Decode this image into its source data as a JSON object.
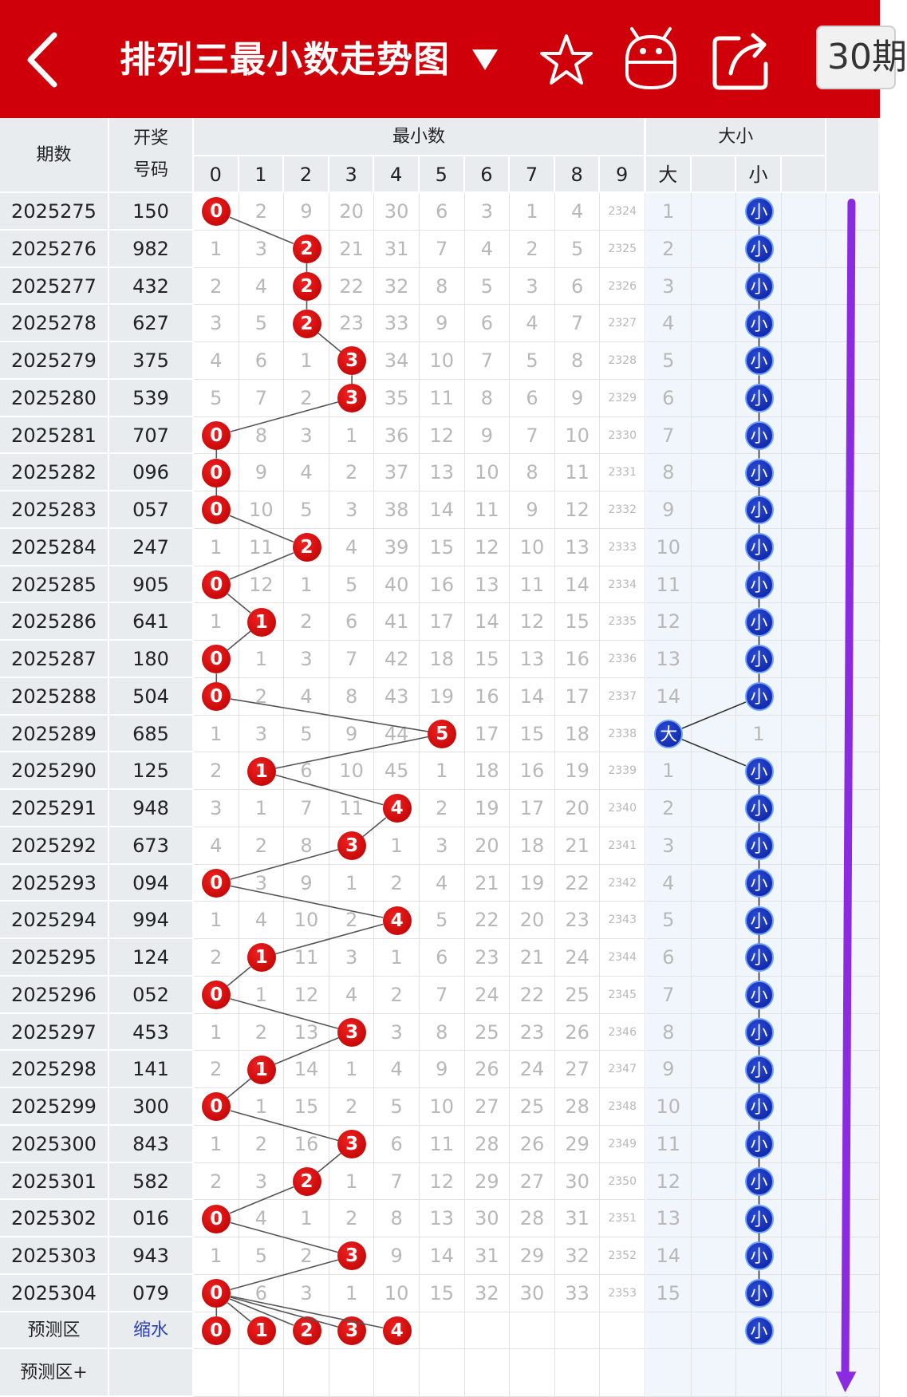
{
  "header": {
    "title": "排列三最小数走势图",
    "period_option": "30期",
    "colors": {
      "bar": "#d0000b",
      "text": "#ffffff"
    },
    "icons": [
      "back-arrow-icon",
      "dropdown-triangle-icon",
      "star-icon",
      "robot-icon",
      "share-icon"
    ]
  },
  "table": {
    "col_period": "期数",
    "col_numbers_line1": "开奖",
    "col_numbers_line2": "号码",
    "group_min": "最小数",
    "group_bs": "大小",
    "digit_headers": [
      "0",
      "1",
      "2",
      "3",
      "4",
      "5",
      "6",
      "7",
      "8",
      "9"
    ],
    "bs_headers": [
      "大",
      "",
      "小"
    ],
    "rows": [
      {
        "period": "2025275",
        "numbers": "150",
        "cells": [
          "0",
          "2",
          "9",
          "20",
          "30",
          "6",
          "3",
          "1",
          "4",
          "2324"
        ],
        "bs": [
          "1",
          "",
          "小"
        ],
        "min": 0,
        "bs_hit": 2
      },
      {
        "period": "2025276",
        "numbers": "982",
        "cells": [
          "1",
          "3",
          "2",
          "21",
          "31",
          "7",
          "4",
          "2",
          "5",
          "2325"
        ],
        "bs": [
          "2",
          "",
          "小"
        ],
        "min": 2,
        "bs_hit": 2
      },
      {
        "period": "2025277",
        "numbers": "432",
        "cells": [
          "2",
          "4",
          "2",
          "22",
          "32",
          "8",
          "5",
          "3",
          "6",
          "2326"
        ],
        "bs": [
          "3",
          "",
          "小"
        ],
        "min": 2,
        "bs_hit": 2
      },
      {
        "period": "2025278",
        "numbers": "627",
        "cells": [
          "3",
          "5",
          "2",
          "23",
          "33",
          "9",
          "6",
          "4",
          "7",
          "2327"
        ],
        "bs": [
          "4",
          "",
          "小"
        ],
        "min": 2,
        "bs_hit": 2
      },
      {
        "period": "2025279",
        "numbers": "375",
        "cells": [
          "4",
          "6",
          "1",
          "3",
          "34",
          "10",
          "7",
          "5",
          "8",
          "2328"
        ],
        "bs": [
          "5",
          "",
          "小"
        ],
        "min": 3,
        "bs_hit": 2
      },
      {
        "period": "2025280",
        "numbers": "539",
        "cells": [
          "5",
          "7",
          "2",
          "3",
          "35",
          "11",
          "8",
          "6",
          "9",
          "2329"
        ],
        "bs": [
          "6",
          "",
          "小"
        ],
        "min": 3,
        "bs_hit": 2
      },
      {
        "period": "2025281",
        "numbers": "707",
        "cells": [
          "0",
          "8",
          "3",
          "1",
          "36",
          "12",
          "9",
          "7",
          "10",
          "2330"
        ],
        "bs": [
          "7",
          "",
          "小"
        ],
        "min": 0,
        "bs_hit": 2
      },
      {
        "period": "2025282",
        "numbers": "096",
        "cells": [
          "0",
          "9",
          "4",
          "2",
          "37",
          "13",
          "10",
          "8",
          "11",
          "2331"
        ],
        "bs": [
          "8",
          "",
          "小"
        ],
        "min": 0,
        "bs_hit": 2
      },
      {
        "period": "2025283",
        "numbers": "057",
        "cells": [
          "0",
          "10",
          "5",
          "3",
          "38",
          "14",
          "11",
          "9",
          "12",
          "2332"
        ],
        "bs": [
          "9",
          "",
          "小"
        ],
        "min": 0,
        "bs_hit": 2
      },
      {
        "period": "2025284",
        "numbers": "247",
        "cells": [
          "1",
          "11",
          "2",
          "4",
          "39",
          "15",
          "12",
          "10",
          "13",
          "2333"
        ],
        "bs": [
          "10",
          "",
          "小"
        ],
        "min": 2,
        "bs_hit": 2
      },
      {
        "period": "2025285",
        "numbers": "905",
        "cells": [
          "0",
          "12",
          "1",
          "5",
          "40",
          "16",
          "13",
          "11",
          "14",
          "2334"
        ],
        "bs": [
          "11",
          "",
          "小"
        ],
        "min": 0,
        "bs_hit": 2
      },
      {
        "period": "2025286",
        "numbers": "641",
        "cells": [
          "1",
          "1",
          "2",
          "6",
          "41",
          "17",
          "14",
          "12",
          "15",
          "2335"
        ],
        "bs": [
          "12",
          "",
          "小"
        ],
        "min": 1,
        "bs_hit": 2
      },
      {
        "period": "2025287",
        "numbers": "180",
        "cells": [
          "0",
          "1",
          "3",
          "7",
          "42",
          "18",
          "15",
          "13",
          "16",
          "2336"
        ],
        "bs": [
          "13",
          "",
          "小"
        ],
        "min": 0,
        "bs_hit": 2
      },
      {
        "period": "2025288",
        "numbers": "504",
        "cells": [
          "0",
          "2",
          "4",
          "8",
          "43",
          "19",
          "16",
          "14",
          "17",
          "2337"
        ],
        "bs": [
          "14",
          "",
          "小"
        ],
        "min": 0,
        "bs_hit": 2
      },
      {
        "period": "2025289",
        "numbers": "685",
        "cells": [
          "1",
          "3",
          "5",
          "9",
          "44",
          "5",
          "17",
          "15",
          "18",
          "2338"
        ],
        "bs": [
          "大",
          "",
          "1"
        ],
        "min": 5,
        "bs_hit": 0
      },
      {
        "period": "2025290",
        "numbers": "125",
        "cells": [
          "2",
          "1",
          "6",
          "10",
          "45",
          "1",
          "18",
          "16",
          "19",
          "2339"
        ],
        "bs": [
          "1",
          "",
          "小"
        ],
        "min": 1,
        "bs_hit": 2
      },
      {
        "period": "2025291",
        "numbers": "948",
        "cells": [
          "3",
          "1",
          "7",
          "11",
          "4",
          "2",
          "19",
          "17",
          "20",
          "2340"
        ],
        "bs": [
          "2",
          "",
          "小"
        ],
        "min": 4,
        "bs_hit": 2
      },
      {
        "period": "2025292",
        "numbers": "673",
        "cells": [
          "4",
          "2",
          "8",
          "3",
          "1",
          "3",
          "20",
          "18",
          "21",
          "2341"
        ],
        "bs": [
          "3",
          "",
          "小"
        ],
        "min": 3,
        "bs_hit": 2
      },
      {
        "period": "2025293",
        "numbers": "094",
        "cells": [
          "0",
          "3",
          "9",
          "1",
          "2",
          "4",
          "21",
          "19",
          "22",
          "2342"
        ],
        "bs": [
          "4",
          "",
          "小"
        ],
        "min": 0,
        "bs_hit": 2
      },
      {
        "period": "2025294",
        "numbers": "994",
        "cells": [
          "1",
          "4",
          "10",
          "2",
          "4",
          "5",
          "22",
          "20",
          "23",
          "2343"
        ],
        "bs": [
          "5",
          "",
          "小"
        ],
        "min": 4,
        "bs_hit": 2
      },
      {
        "period": "2025295",
        "numbers": "124",
        "cells": [
          "2",
          "1",
          "11",
          "3",
          "1",
          "6",
          "23",
          "21",
          "24",
          "2344"
        ],
        "bs": [
          "6",
          "",
          "小"
        ],
        "min": 1,
        "bs_hit": 2
      },
      {
        "period": "2025296",
        "numbers": "052",
        "cells": [
          "0",
          "1",
          "12",
          "4",
          "2",
          "7",
          "24",
          "22",
          "25",
          "2345"
        ],
        "bs": [
          "7",
          "",
          "小"
        ],
        "min": 0,
        "bs_hit": 2
      },
      {
        "period": "2025297",
        "numbers": "453",
        "cells": [
          "1",
          "2",
          "13",
          "3",
          "3",
          "8",
          "25",
          "23",
          "26",
          "2346"
        ],
        "bs": [
          "8",
          "",
          "小"
        ],
        "min": 3,
        "bs_hit": 2
      },
      {
        "period": "2025298",
        "numbers": "141",
        "cells": [
          "2",
          "1",
          "14",
          "1",
          "4",
          "9",
          "26",
          "24",
          "27",
          "2347"
        ],
        "bs": [
          "9",
          "",
          "小"
        ],
        "min": 1,
        "bs_hit": 2
      },
      {
        "period": "2025299",
        "numbers": "300",
        "cells": [
          "0",
          "1",
          "15",
          "2",
          "5",
          "10",
          "27",
          "25",
          "28",
          "2348"
        ],
        "bs": [
          "10",
          "",
          "小"
        ],
        "min": 0,
        "bs_hit": 2
      },
      {
        "period": "2025300",
        "numbers": "843",
        "cells": [
          "1",
          "2",
          "16",
          "3",
          "6",
          "11",
          "28",
          "26",
          "29",
          "2349"
        ],
        "bs": [
          "11",
          "",
          "小"
        ],
        "min": 3,
        "bs_hit": 2
      },
      {
        "period": "2025301",
        "numbers": "582",
        "cells": [
          "2",
          "3",
          "2",
          "1",
          "7",
          "12",
          "29",
          "27",
          "30",
          "2350"
        ],
        "bs": [
          "12",
          "",
          "小"
        ],
        "min": 2,
        "bs_hit": 2
      },
      {
        "period": "2025302",
        "numbers": "016",
        "cells": [
          "0",
          "4",
          "1",
          "2",
          "8",
          "13",
          "30",
          "28",
          "31",
          "2351"
        ],
        "bs": [
          "13",
          "",
          "小"
        ],
        "min": 0,
        "bs_hit": 2
      },
      {
        "period": "2025303",
        "numbers": "943",
        "cells": [
          "1",
          "5",
          "2",
          "3",
          "9",
          "14",
          "31",
          "29",
          "32",
          "2352"
        ],
        "bs": [
          "14",
          "",
          "小"
        ],
        "min": 3,
        "bs_hit": 2
      },
      {
        "period": "2025304",
        "numbers": "079",
        "cells": [
          "0",
          "6",
          "3",
          "1",
          "10",
          "15",
          "32",
          "30",
          "33",
          "2353"
        ],
        "bs": [
          "15",
          "",
          "小"
        ],
        "min": 0,
        "bs_hit": 2
      }
    ],
    "prediction": {
      "label": "预测区",
      "link_text": "缩水",
      "balls": [
        "0",
        "1",
        "2",
        "3",
        "4"
      ],
      "bs_ball": "小"
    },
    "prediction_plus_label": "预测区+",
    "colors": {
      "red_ball": "#d40000",
      "blue_ball": "#0b2aa8",
      "trend_arrow": "#8a2be2"
    }
  }
}
